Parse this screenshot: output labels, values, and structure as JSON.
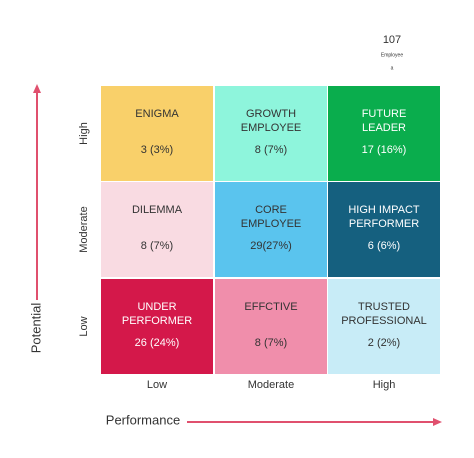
{
  "top": {
    "count": "107",
    "label": "Employee",
    "note": "a"
  },
  "y_axis": {
    "title": "Potential",
    "levels": [
      "High",
      "Moderate",
      "Low"
    ]
  },
  "x_axis": {
    "title": "Performance",
    "levels": [
      "Low",
      "Moderate",
      "High"
    ]
  },
  "cells": [
    {
      "label": [
        "ENIGMA"
      ],
      "value": "3 (3%)",
      "color": "#f9d06a",
      "text_color": "#333333"
    },
    {
      "label": [
        "GROWTH",
        "EMPLOYEE"
      ],
      "value": "8 (7%)",
      "color": "#8ef5dc",
      "text_color": "#333333"
    },
    {
      "label": [
        "FUTURE",
        "LEADER"
      ],
      "value": "17 (16%)",
      "color": "#0aad4d",
      "text_color": "#ffffff"
    },
    {
      "label": [
        "DILEMMA"
      ],
      "value": "8 (7%)",
      "color": "#f9dbe2",
      "text_color": "#333333"
    },
    {
      "label": [
        "CORE",
        "EMPLOYEE"
      ],
      "value": "29(27%)",
      "color": "#5ac4ee",
      "text_color": "#333333"
    },
    {
      "label": [
        "HIGH IMPACT",
        "PERFORMER"
      ],
      "value": "6 (6%)",
      "color": "#15607f",
      "text_color": "#ffffff"
    },
    {
      "label": [
        "UNDER",
        "PERFORMER"
      ],
      "value": "26 (24%)",
      "color": "#d4184a",
      "text_color": "#ffffff"
    },
    {
      "label": [
        "EFFCTIVE"
      ],
      "value": "8 (7%)",
      "color": "#f08eab",
      "text_color": "#333333"
    },
    {
      "label": [
        "TRUSTED",
        "PROFESSIONAL"
      ],
      "value": "2 (2%)",
      "color": "#c8ecf7",
      "text_color": "#333333"
    }
  ]
}
